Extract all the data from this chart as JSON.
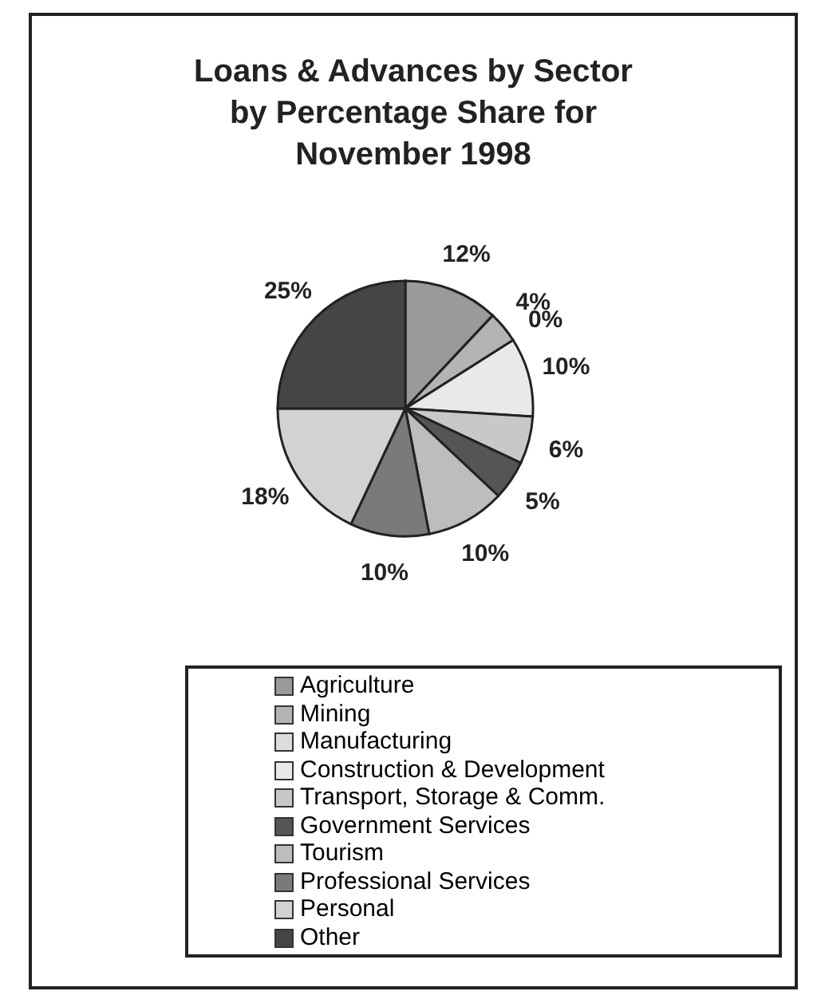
{
  "chart_data": {
    "type": "pie",
    "title": "Loans & Advances by Sector by Percentage Share for November 1998",
    "categories": [
      "Agriculture",
      "Mining",
      "Manufacturing",
      "Construction & Development",
      "Transport, Storage & Comm.",
      "Government Services",
      "Tourism",
      "Professional Services",
      "Personal",
      "Other"
    ],
    "values": [
      12,
      4,
      0,
      10,
      6,
      5,
      10,
      10,
      18,
      25
    ],
    "colors": [
      "#9a9a9a",
      "#b4b4b4",
      "#dcdcdc",
      "#e9e9e9",
      "#c8c8c8",
      "#555555",
      "#bdbdbd",
      "#7a7a7a",
      "#d2d2d2",
      "#454545"
    ],
    "value_labels": [
      "12%",
      "4%",
      "0%",
      "10%",
      "6%",
      "5%",
      "10%",
      "10%",
      "18%",
      "25%"
    ],
    "legend": "bottom"
  }
}
